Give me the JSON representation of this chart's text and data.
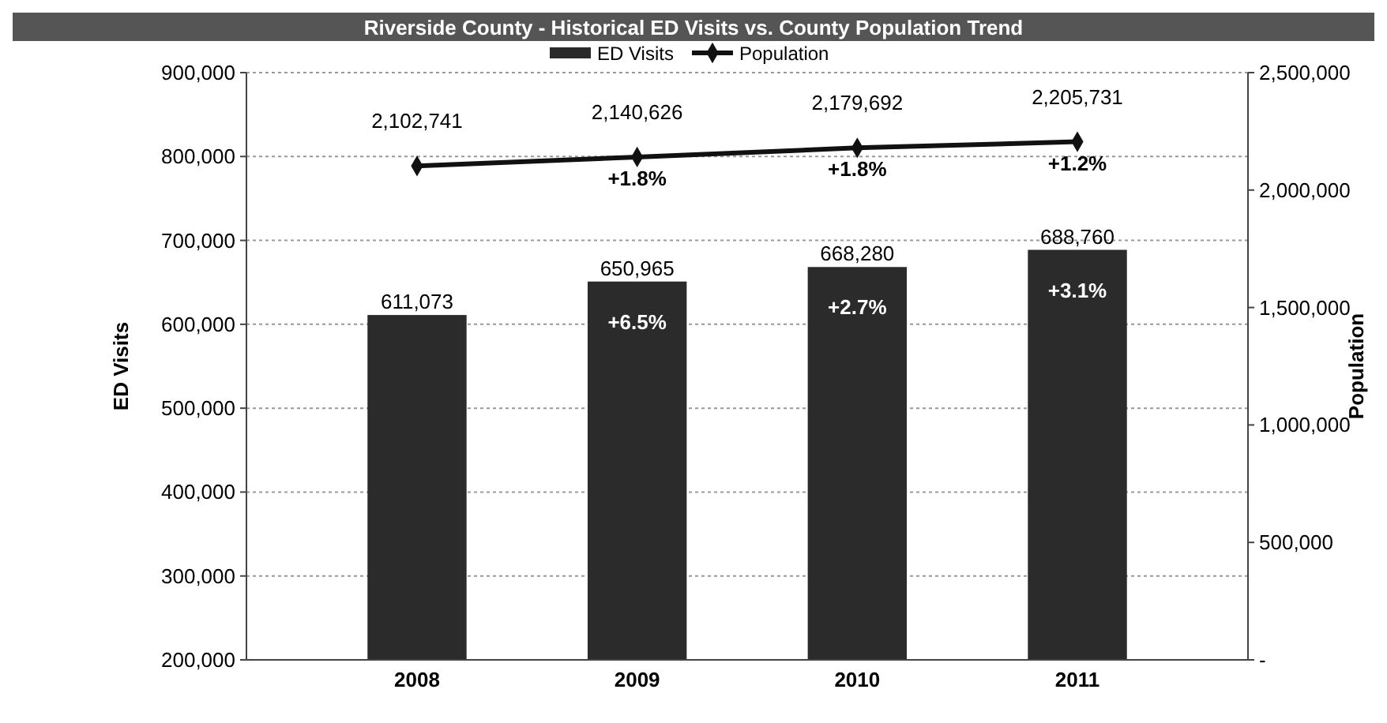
{
  "chart_data": {
    "type": "bar",
    "title": "Riverside County - Historical ED Visits vs. County Population Trend",
    "ylabel": "ED Visits",
    "y2label": "Population",
    "categories": [
      "2008",
      "2009",
      "2010",
      "2011"
    ],
    "series": [
      {
        "name": "ED Visits",
        "color": "#2b2b2b",
        "values": [
          611073,
          650965,
          668280,
          688760
        ],
        "value_labels": [
          "611,073",
          "650,965",
          "668,280",
          "688,760"
        ]
      },
      {
        "name": "Population",
        "type": "line",
        "axis": "y2",
        "color": "#111111",
        "values": [
          2102741,
          2140626,
          2179692,
          2205731
        ],
        "value_labels": [
          "2,102,741",
          "2,140,626",
          "2,179,692",
          "2,205,731"
        ]
      }
    ],
    "ylim": [
      200000,
      900000
    ],
    "yticks": [
      {
        "value": 200000,
        "label": "200,000"
      },
      {
        "value": 300000,
        "label": "300,000"
      },
      {
        "value": 400000,
        "label": "400,000"
      },
      {
        "value": 500000,
        "label": "500,000"
      },
      {
        "value": 600000,
        "label": "600,000"
      },
      {
        "value": 700000,
        "label": "700,000"
      },
      {
        "value": 800000,
        "label": "800,000"
      },
      {
        "value": 900000,
        "label": "900,000"
      }
    ],
    "y2lim": [
      0,
      2500000
    ],
    "y2ticks": [
      {
        "value": 0,
        "label": "-"
      },
      {
        "value": 500000,
        "label": "500,000"
      },
      {
        "value": 1000000,
        "label": "1,000,000"
      },
      {
        "value": 1500000,
        "label": "1,500,000"
      },
      {
        "value": 2000000,
        "label": "2,000,000"
      },
      {
        "value": 2500000,
        "label": "2,500,000"
      }
    ],
    "grid": "y",
    "legend": "top",
    "marker": "diamond",
    "annotations": [
      "+6.5%",
      "+2.7%",
      "+3.1%",
      "+1.8%",
      "+1.8%",
      "+1.2%"
    ]
  }
}
